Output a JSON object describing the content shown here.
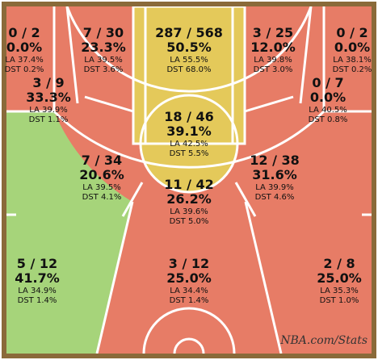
{
  "watermark": "NBA.com/Stats",
  "colors": {
    "border": "#8a6a3a",
    "floor": "#e7c58e",
    "lines": "#ffffff",
    "below": "#e77c66",
    "average": "#e4c95a",
    "above": "#a6d47a"
  },
  "chart_data": {
    "type": "shot_chart",
    "title": "",
    "zones": [
      {
        "id": "left-corner-3",
        "fg": "0 / 2",
        "pct": "0.0%",
        "la": "LA 37.4%",
        "dst": "DST 0.2%",
        "rating": "below"
      },
      {
        "id": "left-wing-mid-upper",
        "fg": "7 / 30",
        "pct": "23.3%",
        "la": "LA 39.5%",
        "dst": "DST 3.6%",
        "rating": "below"
      },
      {
        "id": "paint-non-ra",
        "fg": "287 / 568",
        "pct": "50.5%",
        "la": "LA 55.5%",
        "dst": "DST 68.0%",
        "rating": "average"
      },
      {
        "id": "right-wing-mid-upper",
        "fg": "3 / 25",
        "pct": "12.0%",
        "la": "LA 39.8%",
        "dst": "DST 3.0%",
        "rating": "below"
      },
      {
        "id": "right-corner-3",
        "fg": "0 / 2",
        "pct": "0.0%",
        "la": "LA 38.1%",
        "dst": "DST 0.2%",
        "rating": "below"
      },
      {
        "id": "left-baseline-mid",
        "fg": "3 / 9",
        "pct": "33.3%",
        "la": "LA 39.9%",
        "dst": "DST 1.1%",
        "rating": "below"
      },
      {
        "id": "right-baseline-mid",
        "fg": "0 / 7",
        "pct": "0.0%",
        "la": "LA 40.5%",
        "dst": "DST 0.8%",
        "rating": "below"
      },
      {
        "id": "paint-upper",
        "fg": "18 / 46",
        "pct": "39.1%",
        "la": "LA 42.5%",
        "dst": "DST 5.5%",
        "rating": "average"
      },
      {
        "id": "left-elbow-mid",
        "fg": "7 / 34",
        "pct": "20.6%",
        "la": "LA 39.5%",
        "dst": "DST 4.1%",
        "rating": "below"
      },
      {
        "id": "right-elbow-mid",
        "fg": "12 / 38",
        "pct": "31.6%",
        "la": "LA 39.9%",
        "dst": "DST 4.6%",
        "rating": "below"
      },
      {
        "id": "top-key-mid",
        "fg": "11 / 42",
        "pct": "26.2%",
        "la": "LA 39.6%",
        "dst": "DST 5.0%",
        "rating": "below"
      },
      {
        "id": "left-wing-3",
        "fg": "5 / 12",
        "pct": "41.7%",
        "la": "LA 34.9%",
        "dst": "DST 1.4%",
        "rating": "above"
      },
      {
        "id": "top-key-3",
        "fg": "3 / 12",
        "pct": "25.0%",
        "la": "LA 34.4%",
        "dst": "DST 1.4%",
        "rating": "below"
      },
      {
        "id": "right-wing-3",
        "fg": "2 / 8",
        "pct": "25.0%",
        "la": "LA 35.3%",
        "dst": "DST 1.0%",
        "rating": "below"
      }
    ]
  }
}
